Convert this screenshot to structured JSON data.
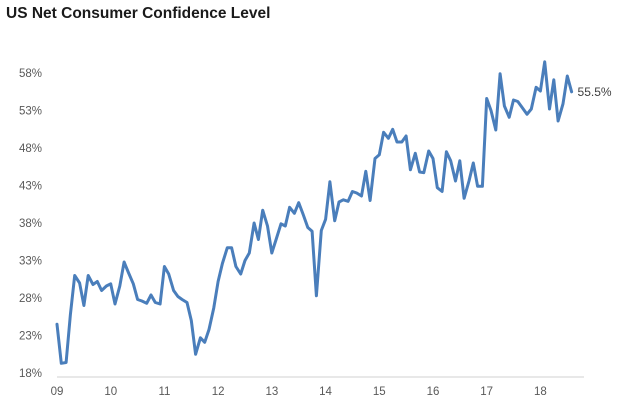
{
  "chart_data": {
    "type": "line",
    "title": "US Net Consumer Confidence Level",
    "xlabel": "",
    "ylabel": "",
    "x_tick_labels": [
      "09",
      "10",
      "11",
      "12",
      "13",
      "14",
      "15",
      "16",
      "17",
      "18"
    ],
    "y_tick_labels": [
      "18%",
      "23%",
      "28%",
      "33%",
      "38%",
      "43%",
      "48%",
      "53%",
      "58%"
    ],
    "y_ticks": [
      18,
      23,
      28,
      33,
      38,
      43,
      48,
      53,
      58
    ],
    "xlim": [
      2009,
      2018.7
    ],
    "ylim": [
      18,
      58
    ],
    "grid": false,
    "line_color": "#4a7ebb",
    "end_label": "55.5%",
    "series": [
      {
        "x": [
          2009.0,
          2009.08,
          2009.17,
          2009.25,
          2009.33,
          2009.42,
          2009.5,
          2009.58,
          2009.67,
          2009.75,
          2009.83,
          2009.92,
          2010.0,
          2010.08,
          2010.17,
          2010.25,
          2010.33,
          2010.42,
          2010.5,
          2010.58,
          2010.67,
          2010.75,
          2010.83,
          2010.92,
          2011.0,
          2011.08,
          2011.17,
          2011.25,
          2011.33,
          2011.42,
          2011.5,
          2011.58,
          2011.67,
          2011.75,
          2011.83,
          2011.92,
          2012.0,
          2012.08,
          2012.17,
          2012.25,
          2012.33,
          2012.42,
          2012.5,
          2012.58,
          2012.67,
          2012.75,
          2012.83,
          2012.92,
          2013.0,
          2013.08,
          2013.17,
          2013.25,
          2013.33,
          2013.42,
          2013.5,
          2013.58,
          2013.67,
          2013.75,
          2013.83,
          2013.92,
          2014.0,
          2014.08,
          2014.17,
          2014.25,
          2014.33,
          2014.42,
          2014.5,
          2014.58,
          2014.67,
          2014.75,
          2014.83,
          2014.92,
          2015.0,
          2015.08,
          2015.17,
          2015.25,
          2015.33,
          2015.42,
          2015.5,
          2015.58,
          2015.67,
          2015.75,
          2015.83,
          2015.92,
          2016.0,
          2016.08,
          2016.17,
          2016.25,
          2016.33,
          2016.42,
          2016.5,
          2016.58,
          2016.67,
          2016.75,
          2016.83,
          2016.92,
          2017.0,
          2017.08,
          2017.17,
          2017.25,
          2017.33,
          2017.42,
          2017.5,
          2017.58,
          2017.67,
          2017.75,
          2017.83,
          2017.92,
          2018.0,
          2018.08,
          2018.17,
          2018.25,
          2018.33,
          2018.42,
          2018.5,
          2018.58
        ],
        "y": [
          24.5,
          19.3,
          19.4,
          25.8,
          31.0,
          30.0,
          27.0,
          31.0,
          29.8,
          30.2,
          29.0,
          29.6,
          29.9,
          27.2,
          29.6,
          32.8,
          31.4,
          29.9,
          27.8,
          27.6,
          27.3,
          28.4,
          27.4,
          27.2,
          32.2,
          31.2,
          29.0,
          28.2,
          27.8,
          27.4,
          25.0,
          20.5,
          22.7,
          22.1,
          23.8,
          26.7,
          30.2,
          32.6,
          34.7,
          34.7,
          32.2,
          31.2,
          33.0,
          34.0,
          38.0,
          35.8,
          39.7,
          37.6,
          34.0,
          35.8,
          37.9,
          37.6,
          40.1,
          39.3,
          40.7,
          39.2,
          37.4,
          36.9,
          28.3,
          37.0,
          38.5,
          43.5,
          38.3,
          40.8,
          41.1,
          40.9,
          42.2,
          42.0,
          41.6,
          44.9,
          41.0,
          46.6,
          47.1,
          50.1,
          49.3,
          50.5,
          48.8,
          48.8,
          49.6,
          45.1,
          47.3,
          44.8,
          44.7,
          47.6,
          46.6,
          42.7,
          42.2,
          47.5,
          46.3,
          43.6,
          46.3,
          41.3,
          43.6,
          46.0,
          42.9,
          42.9,
          54.6,
          53.0,
          50.4,
          57.9,
          53.6,
          52.1,
          54.4,
          54.2,
          53.3,
          52.5,
          53.2,
          56.1,
          55.6,
          59.5,
          53.2,
          57.1,
          51.6,
          53.9,
          57.6,
          55.5
        ]
      }
    ]
  }
}
